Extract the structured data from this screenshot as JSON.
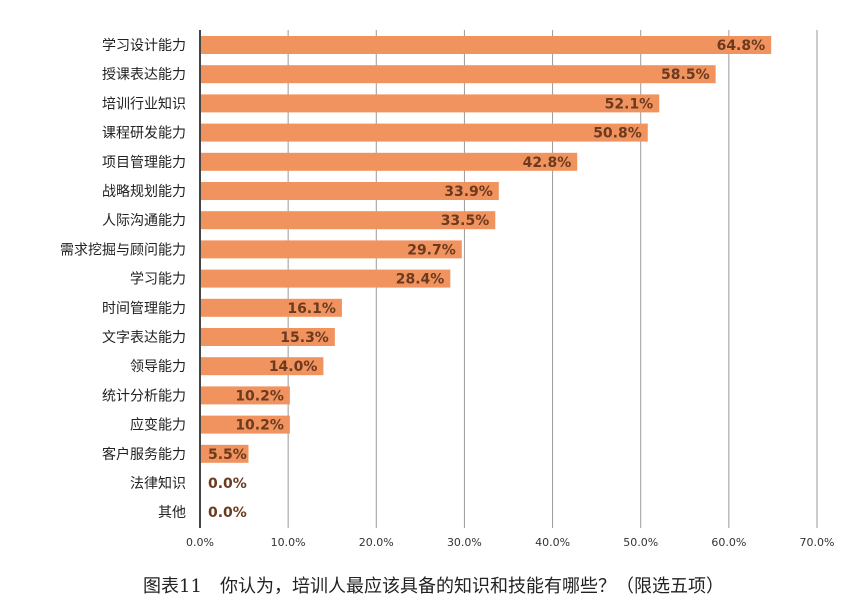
{
  "caption": "图表11　你认为，培训人最应该具备的知识和技能有哪些？（限选五项）",
  "chart_data": {
    "type": "bar",
    "orientation": "horizontal",
    "categories": [
      "学习设计能力",
      "授课表达能力",
      "培训行业知识",
      "课程研发能力",
      "项目管理能力",
      "战略规划能力",
      "人际沟通能力",
      "需求挖掘与顾问能力",
      "学习能力",
      "时间管理能力",
      "文字表达能力",
      "领导能力",
      "统计分析能力",
      "应变能力",
      "客户服务能力",
      "法律知识",
      "其他"
    ],
    "values": [
      64.8,
      58.5,
      52.1,
      50.8,
      42.8,
      33.9,
      33.5,
      29.7,
      28.4,
      16.1,
      15.3,
      14.0,
      10.2,
      10.2,
      5.5,
      0.0,
      0.0
    ],
    "value_labels": [
      "64.8%",
      "58.5%",
      "52.1%",
      "50.8%",
      "42.8%",
      "33.9%",
      "33.5%",
      "29.7%",
      "28.4%",
      "16.1%",
      "15.3%",
      "14.0%",
      "10.2%",
      "10.2%",
      "5.5%",
      "0.0%",
      "0.0%"
    ],
    "xlim": [
      0,
      70
    ],
    "x_ticks": [
      0,
      10,
      20,
      30,
      40,
      50,
      60,
      70
    ],
    "x_tick_labels": [
      "0.0%",
      "10.0%",
      "20.0%",
      "30.0%",
      "40.0%",
      "50.0%",
      "60.0%",
      "70.0%"
    ],
    "grid": true,
    "bar_color": "#f0935e",
    "value_label_color": "#6b3a1f",
    "grid_color": "#9a9a9a"
  }
}
